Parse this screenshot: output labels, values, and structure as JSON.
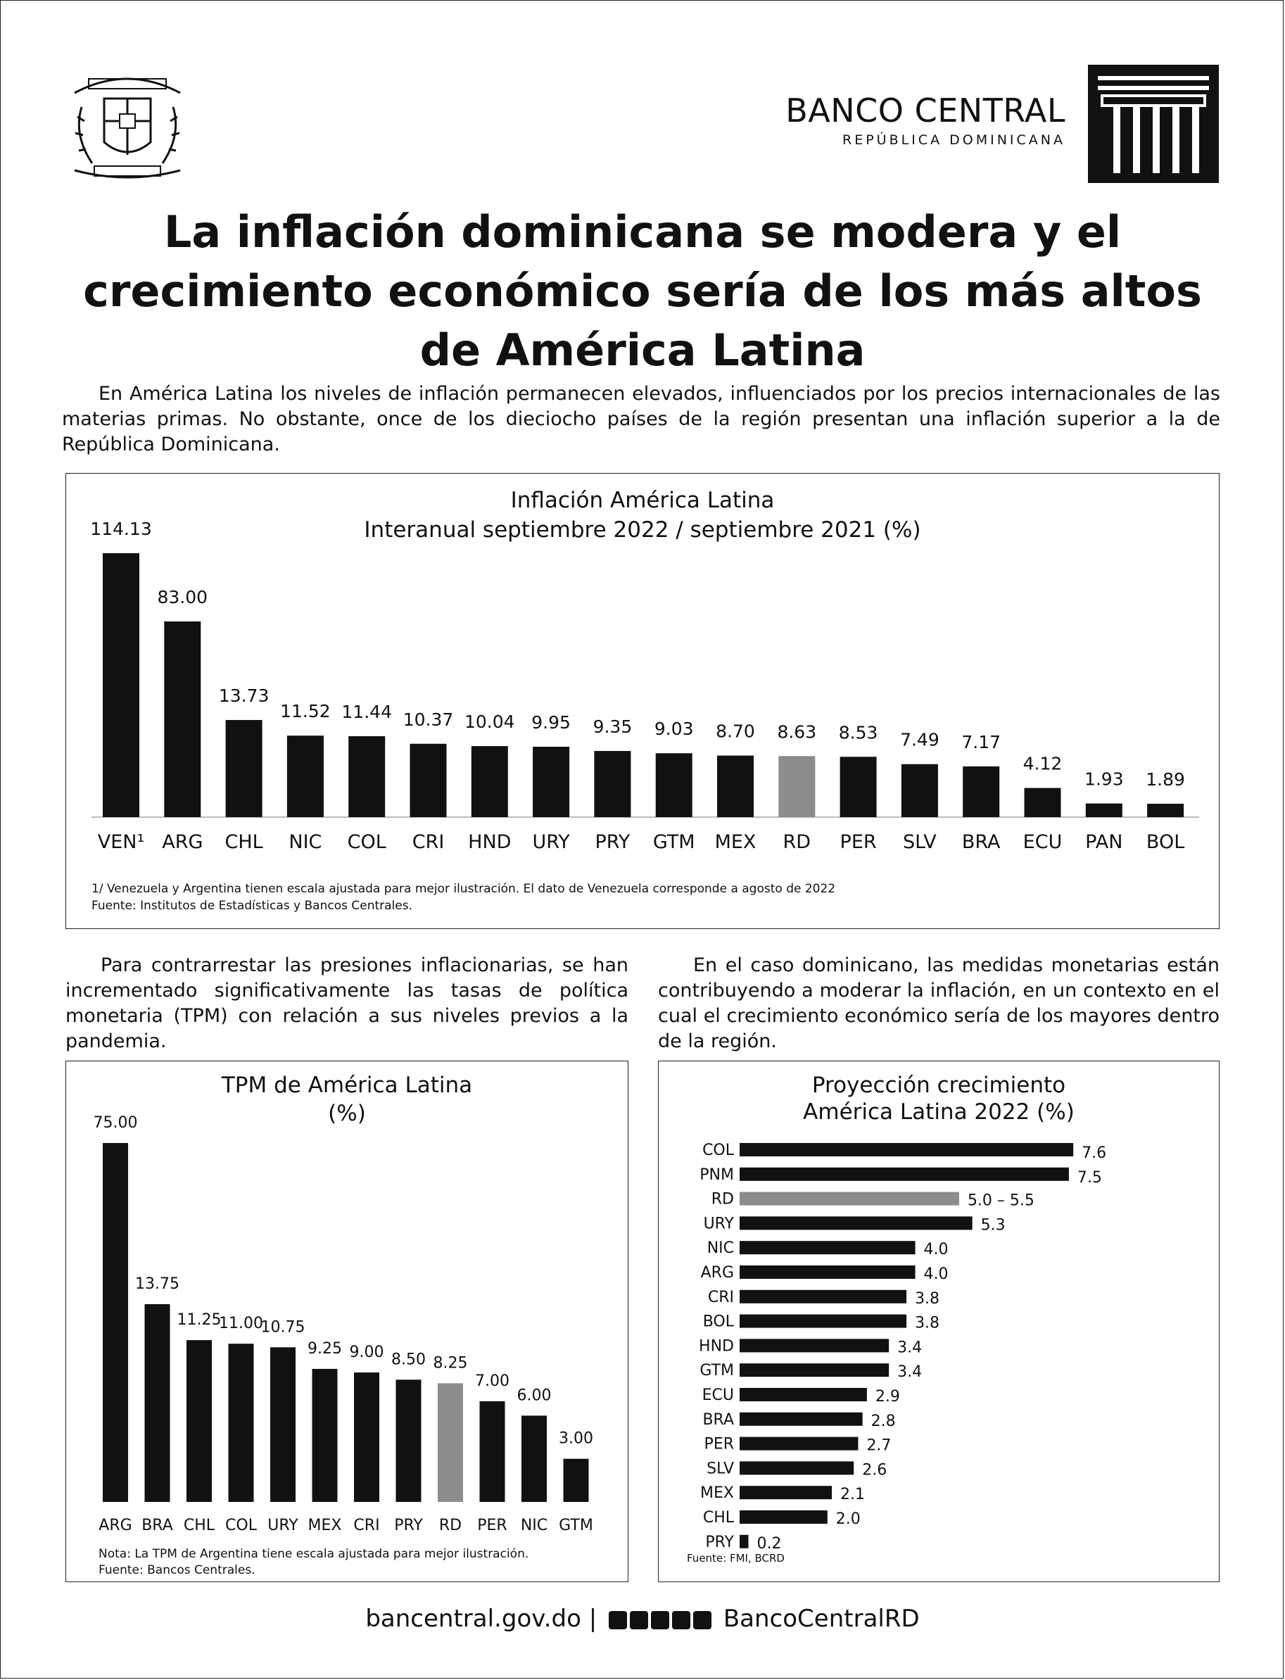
{
  "header": {
    "logo_title": "BANCO CENTRAL",
    "logo_subtitle": "REPÚBLICA DOMINICANA"
  },
  "title_lines": [
    "La inflación dominicana se modera y el",
    "crecimiento económico sería de los más altos",
    "de América Latina"
  ],
  "intro": "En América Latina los niveles de inflación permanecen elevados, influenciados por los precios internacionales de las materias primas. No obstante, once de los dieciocho países de la región presentan una inflación superior a la de República Dominicana.",
  "chart1": {
    "title": "Inflación América Latina",
    "subtitle": "Interanual septiembre 2022 / septiembre 2021 (%)",
    "note": "1/ Venezuela y Argentina tienen escala ajustada para mejor ilustración. El dato de Venezuela corresponde a agosto de 2022",
    "source": "Fuente: Institutos de Estadísticas y Bancos Centrales."
  },
  "para_left": "Para contrarrestar las presiones inflacionarias, se han incrementado significativamente las tasas de política monetaria (TPM) con relación a sus niveles previos a la pandemia.",
  "para_right": "En el caso dominicano, las medidas monetarias están contribuyendo a moderar la inflación, en un contexto en el cual el crecimiento económico sería de los mayores dentro de la región.",
  "chart2": {
    "title": "TPM de América Latina",
    "subtitle": "(%)",
    "note": "Nota: La TPM de Argentina tiene escala ajustada para mejor ilustración.",
    "source": "Fuente: Bancos Centrales."
  },
  "chart3": {
    "title": "Proyección crecimiento",
    "subtitle": "América Latina 2022 (%)",
    "source": "Fuente: FMI, BCRD"
  },
  "footer": {
    "website": "bancentral.gov.do",
    "separator": "|",
    "handle": "BancoCentralRD"
  },
  "colors": {
    "bar": "#111111",
    "highlight": "#8c8c8c"
  },
  "icons": [
    "coat-of-arms-icon",
    "bank-column-logo-icon",
    "twitter-icon",
    "facebook-icon",
    "instagram-icon",
    "linkedin-icon",
    "youtube-icon"
  ],
  "chart_data": [
    {
      "type": "bar",
      "title": "Inflación América Latina",
      "subtitle": "Interanual septiembre 2022 / septiembre 2021 (%)",
      "categories": [
        "VEN¹",
        "ARG",
        "CHL",
        "NIC",
        "COL",
        "CRI",
        "HND",
        "URY",
        "PRY",
        "GTM",
        "MEX",
        "RD",
        "PER",
        "SLV",
        "BRA",
        "ECU",
        "PAN",
        "BOL"
      ],
      "values": [
        114.13,
        83.0,
        13.73,
        11.52,
        11.44,
        10.37,
        10.04,
        9.95,
        9.35,
        9.03,
        8.7,
        8.63,
        8.53,
        7.49,
        7.17,
        4.12,
        1.93,
        1.89
      ],
      "labels": [
        "114.13",
        "83.00",
        "13.73",
        "11.52",
        "11.44",
        "10.37",
        "10.04",
        "9.95",
        "9.35",
        "9.03",
        "8.70",
        "8.63",
        "8.53",
        "7.49",
        "7.17",
        "4.12",
        "1.93",
        "1.89"
      ],
      "highlight": "RD",
      "grid": false,
      "legend": "none"
    },
    {
      "type": "bar",
      "title": "TPM de América Latina",
      "subtitle": "(%)",
      "categories": [
        "ARG",
        "BRA",
        "CHL",
        "COL",
        "URY",
        "MEX",
        "CRI",
        "PRY",
        "RD",
        "PER",
        "NIC",
        "GTM"
      ],
      "values": [
        75.0,
        13.75,
        11.25,
        11.0,
        10.75,
        9.25,
        9.0,
        8.5,
        8.25,
        7.0,
        6.0,
        3.0
      ],
      "labels": [
        "75.00",
        "13.75",
        "11.25",
        "11.00",
        "10.75",
        "9.25",
        "9.00",
        "8.50",
        "8.25",
        "7.00",
        "6.00",
        "3.00"
      ],
      "highlight": "RD",
      "grid": false,
      "legend": "none"
    },
    {
      "type": "bar",
      "orientation": "horizontal",
      "title": "Proyección crecimiento",
      "subtitle": "América Latina 2022 (%)",
      "categories": [
        "COL",
        "PNM",
        "RD",
        "URY",
        "NIC",
        "ARG",
        "CRI",
        "BOL",
        "HND",
        "GTM",
        "ECU",
        "BRA",
        "PER",
        "SLV",
        "MEX",
        "CHL",
        "PRY"
      ],
      "values": [
        7.6,
        7.5,
        5.0,
        5.3,
        4.0,
        4.0,
        3.8,
        3.8,
        3.4,
        3.4,
        2.9,
        2.8,
        2.7,
        2.6,
        2.1,
        2.0,
        0.2
      ],
      "labels": [
        "7.6",
        "7.5",
        "5.0 – 5.5",
        "5.3",
        "4.0",
        "4.0",
        "3.8",
        "3.8",
        "3.4",
        "3.4",
        "2.9",
        "2.8",
        "2.7",
        "2.6",
        "2.1",
        "2.0",
        "0.2"
      ],
      "highlight": "RD",
      "xlim": [
        0,
        7.6
      ],
      "grid": false,
      "legend": "none"
    }
  ]
}
